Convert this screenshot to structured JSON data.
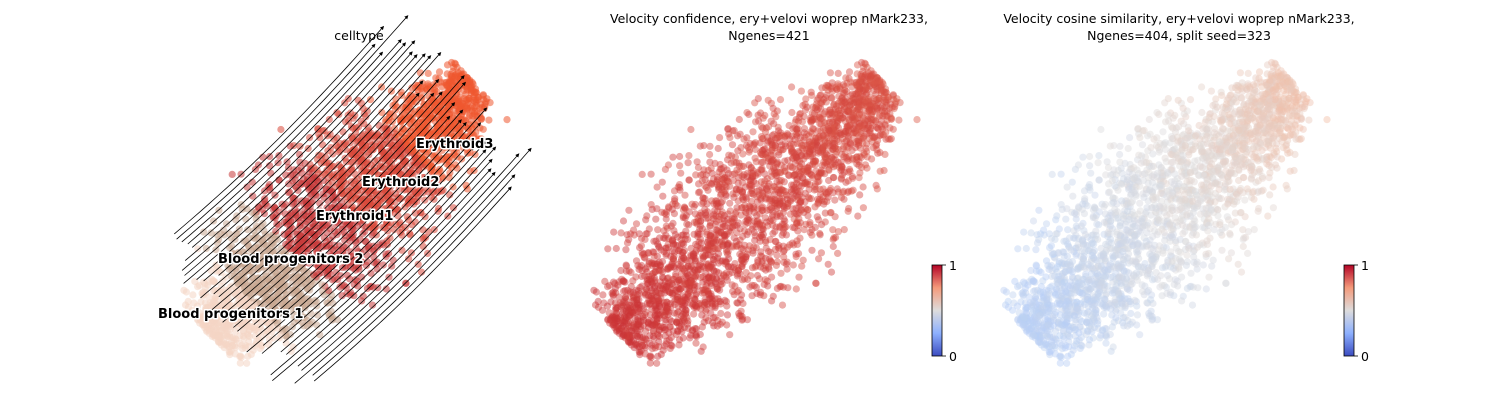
{
  "chart_data": [
    {
      "type": "scatter",
      "title": "celltype",
      "xlabel": "",
      "ylabel": "",
      "grid": false,
      "overlay": "velocity streamlines (black arrows)",
      "colors": {
        "Blood progenitors 1": "#f4d5c4",
        "Blood progenitors 2": "#c9a892",
        "Erythroid1": "#c63b3b",
        "Erythroid2": "#d9483a",
        "Erythroid3": "#ef5730"
      },
      "cluster_labels": [
        "Blood progenitors 1",
        "Blood progenitors 2",
        "Erythroid1",
        "Erythroid2",
        "Erythroid3"
      ]
    },
    {
      "type": "scatter",
      "title_line1": "Velocity confidence, ery+velovi woprep nMark233,",
      "title_line2": "Ngenes=421",
      "grid": false,
      "colorbar": {
        "ticks": [
          "0",
          "1"
        ],
        "range": [
          0,
          1
        ],
        "colormap": "coolwarm",
        "location": "right-bottom"
      },
      "value_range_estimate": [
        0.9,
        1.0
      ]
    },
    {
      "type": "scatter",
      "title_line1": "Velocity cosine similarity, ery+velovi woprep nMark233,",
      "title_line2": "Ngenes=404, split seed=323",
      "grid": false,
      "colorbar": {
        "ticks": [
          "0",
          "1"
        ],
        "range": [
          0,
          1
        ],
        "colormap": "coolwarm",
        "location": "right-bottom"
      },
      "value_range_estimate": [
        0.25,
        0.7
      ]
    }
  ]
}
